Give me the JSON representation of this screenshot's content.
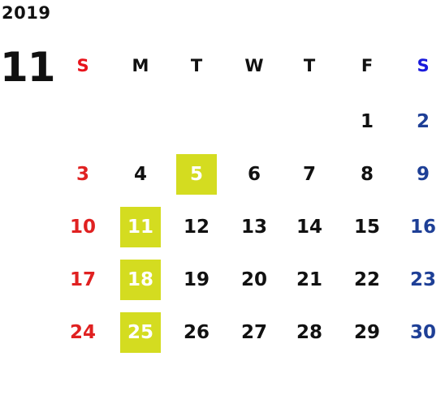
{
  "calendar": {
    "year": "2019",
    "month": "11",
    "weekdays": [
      "S",
      "M",
      "T",
      "W",
      "T",
      "F",
      "S"
    ],
    "weeks": [
      [
        "",
        "",
        "",
        "",
        "",
        "1",
        "2"
      ],
      [
        "3",
        "4",
        "5",
        "6",
        "7",
        "8",
        "9"
      ],
      [
        "10",
        "11",
        "12",
        "13",
        "14",
        "15",
        "16"
      ],
      [
        "17",
        "18",
        "19",
        "20",
        "21",
        "22",
        "23"
      ],
      [
        "24",
        "25",
        "26",
        "27",
        "28",
        "29",
        "30"
      ]
    ],
    "highlighted_days": [
      "5",
      "11",
      "18",
      "25"
    ]
  },
  "colors": {
    "text": "#111111",
    "sunday_header": "#e8141c",
    "saturday_header": "#1a1adc",
    "sunday_day": "#e02121",
    "saturday_day": "#1e3f96",
    "highlight_bg": "#d4dc20",
    "highlight_text": "#ffffff"
  }
}
